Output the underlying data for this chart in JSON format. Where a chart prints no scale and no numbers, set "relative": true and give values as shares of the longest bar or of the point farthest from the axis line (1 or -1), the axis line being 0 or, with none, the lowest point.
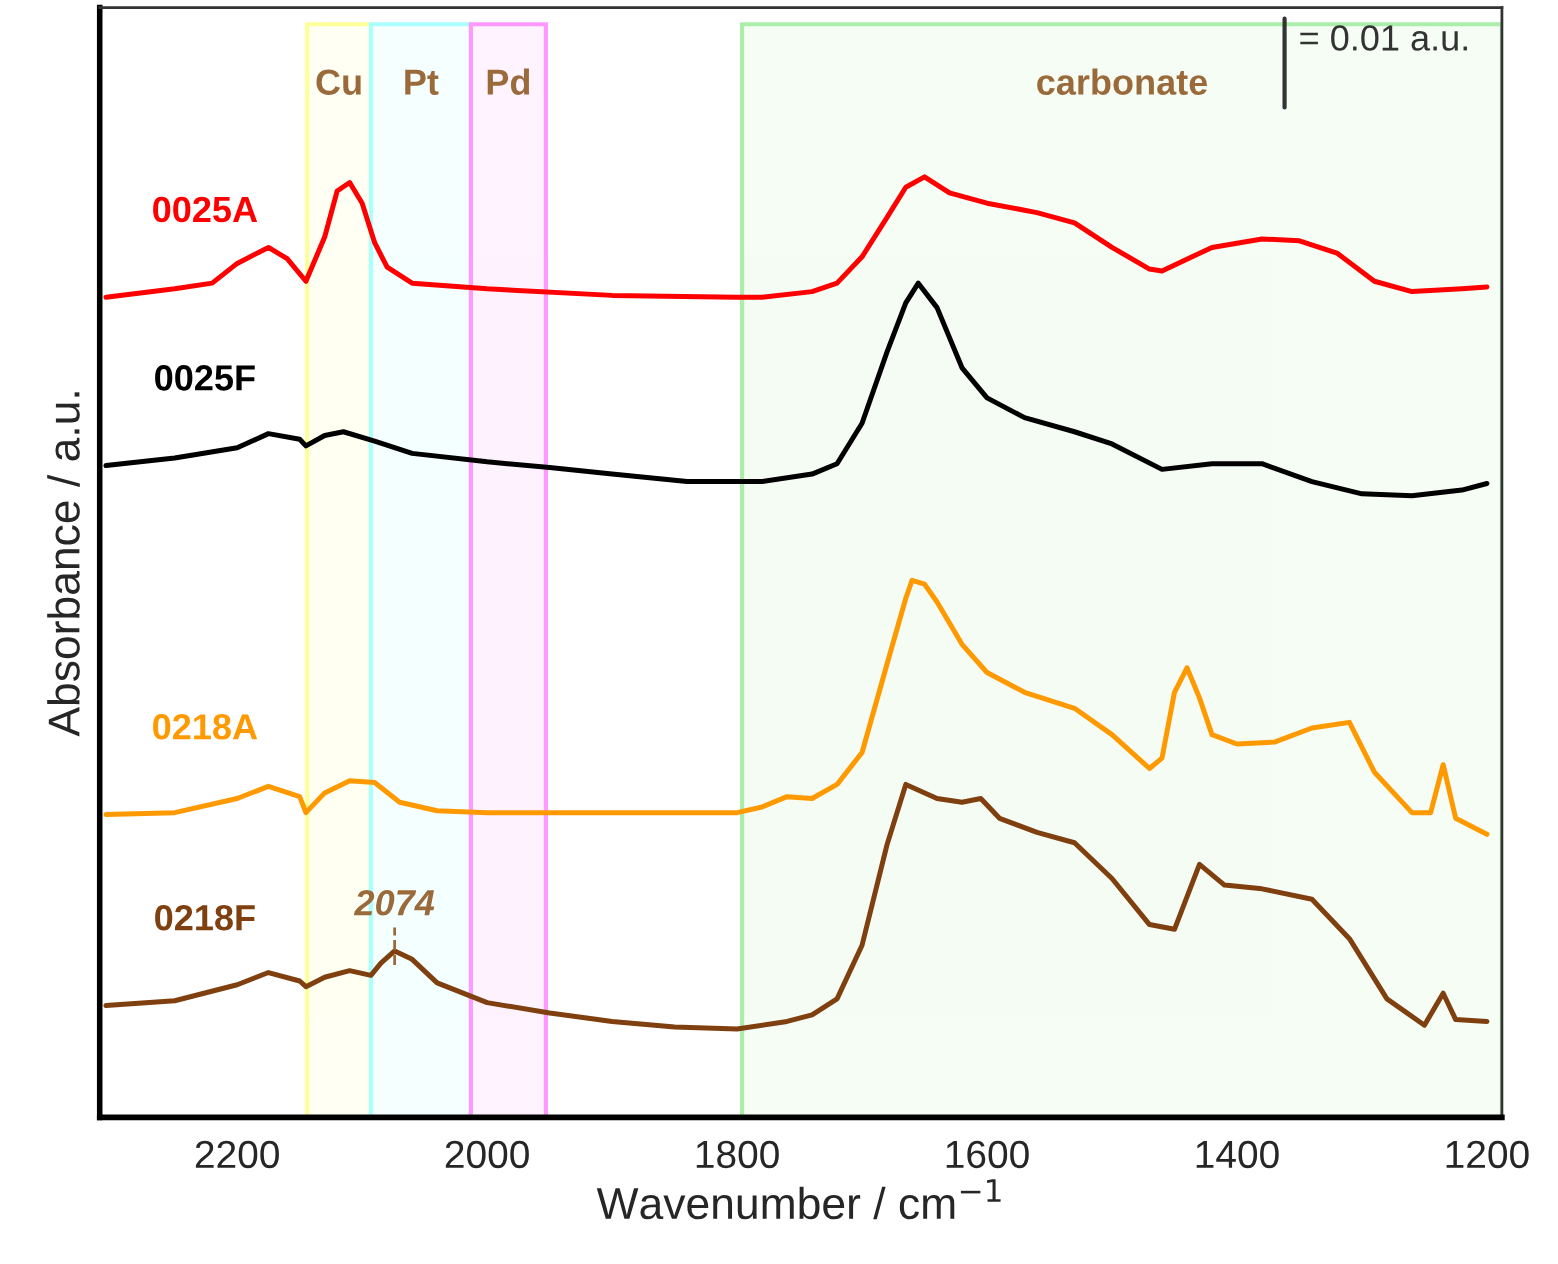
{
  "chart_data": {
    "type": "line",
    "relative": true,
    "xlabel": "Wavenumber / cm$^{−1}$",
    "ylabel": "Absorbance / a.u.",
    "xlim": [
      2310,
      1188
    ],
    "xticks": [
      2200,
      2000,
      1800,
      1600,
      1400,
      1200
    ],
    "grid": false,
    "legend": false,
    "line_style": "solid",
    "marker": "none",
    "bands": [
      {
        "axis": "x",
        "from": 2144,
        "to": 2093,
        "label": "Cu",
        "color": "#ffff99"
      },
      {
        "axis": "x",
        "from": 2093,
        "to": 2013,
        "label": "Pt",
        "color": "#aaffff"
      },
      {
        "axis": "x",
        "from": 2013,
        "to": 1953,
        "label": "Pd",
        "color": "#ff99ff"
      },
      {
        "axis": "x",
        "from": 1796,
        "to": 1188,
        "label": "carbonate",
        "color": "#aaeeaa"
      }
    ],
    "annotations": [
      "= 0.01 a.u.",
      {
        "text": "2074",
        "x": 2074,
        "y": 0.177
      }
    ],
    "series": [
      {
        "name": "0025A",
        "color": "#ff0000",
        "x": [
          2305,
          2250,
          2220,
          2200,
          2175,
          2160,
          2145,
          2130,
          2120,
          2110,
          2100,
          2090,
          2080,
          2060,
          2000,
          1900,
          1800,
          1780,
          1740,
          1720,
          1700,
          1680,
          1665,
          1650,
          1630,
          1600,
          1560,
          1530,
          1500,
          1470,
          1460,
          1420,
          1380,
          1350,
          1320,
          1290,
          1260,
          1220,
          1200
        ],
        "values": [
          0.872,
          0.881,
          0.887,
          0.908,
          0.925,
          0.913,
          0.889,
          0.936,
          0.985,
          0.994,
          0.972,
          0.93,
          0.904,
          0.887,
          0.881,
          0.874,
          0.872,
          0.872,
          0.878,
          0.887,
          0.915,
          0.957,
          0.989,
          1,
          0.983,
          0.972,
          0.962,
          0.951,
          0.925,
          0.902,
          0.9,
          0.925,
          0.934,
          0.932,
          0.919,
          0.889,
          0.878,
          0.881,
          0.883
        ]
      },
      {
        "name": "0025F",
        "color": "#000000",
        "x": [
          2305,
          2250,
          2200,
          2175,
          2150,
          2145,
          2130,
          2115,
          2090,
          2060,
          2000,
          1950,
          1900,
          1840,
          1800,
          1780,
          1740,
          1720,
          1700,
          1680,
          1665,
          1655,
          1640,
          1620,
          1600,
          1570,
          1530,
          1500,
          1460,
          1420,
          1380,
          1340,
          1300,
          1260,
          1220,
          1200
        ],
        "values": [
          0.693,
          0.701,
          0.712,
          0.727,
          0.721,
          0.714,
          0.725,
          0.729,
          0.719,
          0.706,
          0.697,
          0.691,
          0.684,
          0.676,
          0.676,
          0.676,
          0.684,
          0.695,
          0.738,
          0.814,
          0.866,
          0.887,
          0.861,
          0.797,
          0.765,
          0.744,
          0.729,
          0.716,
          0.689,
          0.695,
          0.695,
          0.676,
          0.663,
          0.661,
          0.667,
          0.674
        ]
      },
      {
        "name": "0218A",
        "color": "#ff9900",
        "x": [
          2305,
          2250,
          2200,
          2175,
          2150,
          2145,
          2130,
          2110,
          2090,
          2070,
          2040,
          2000,
          1900,
          1800,
          1780,
          1760,
          1740,
          1720,
          1700,
          1680,
          1665,
          1660,
          1650,
          1640,
          1620,
          1600,
          1570,
          1530,
          1500,
          1470,
          1460,
          1450,
          1440,
          1430,
          1420,
          1400,
          1370,
          1340,
          1310,
          1290,
          1260,
          1245,
          1235,
          1225,
          1200
        ],
        "values": [
          0.322,
          0.324,
          0.339,
          0.352,
          0.341,
          0.324,
          0.345,
          0.358,
          0.356,
          0.335,
          0.326,
          0.324,
          0.324,
          0.324,
          0.33,
          0.341,
          0.339,
          0.354,
          0.388,
          0.482,
          0.552,
          0.571,
          0.567,
          0.548,
          0.503,
          0.473,
          0.452,
          0.435,
          0.407,
          0.371,
          0.382,
          0.452,
          0.478,
          0.446,
          0.407,
          0.397,
          0.399,
          0.414,
          0.42,
          0.367,
          0.324,
          0.324,
          0.375,
          0.318,
          0.301
        ]
      },
      {
        "name": "0218F",
        "color": "#7f3f0f",
        "x": [
          2305,
          2250,
          2200,
          2175,
          2150,
          2145,
          2130,
          2110,
          2093,
          2085,
          2074,
          2060,
          2040,
          2000,
          1950,
          1900,
          1850,
          1800,
          1760,
          1740,
          1720,
          1700,
          1680,
          1665,
          1640,
          1620,
          1605,
          1590,
          1560,
          1530,
          1500,
          1470,
          1450,
          1430,
          1410,
          1380,
          1340,
          1310,
          1280,
          1250,
          1235,
          1225,
          1200
        ],
        "values": [
          0.119,
          0.124,
          0.141,
          0.154,
          0.145,
          0.139,
          0.149,
          0.156,
          0.151,
          0.164,
          0.177,
          0.168,
          0.143,
          0.122,
          0.111,
          0.102,
          0.096,
          0.094,
          0.102,
          0.109,
          0.126,
          0.183,
          0.29,
          0.354,
          0.339,
          0.335,
          0.339,
          0.318,
          0.303,
          0.292,
          0.254,
          0.205,
          0.2,
          0.269,
          0.247,
          0.243,
          0.232,
          0.19,
          0.126,
          0.098,
          0.132,
          0.104,
          0.102
        ]
      }
    ]
  }
}
